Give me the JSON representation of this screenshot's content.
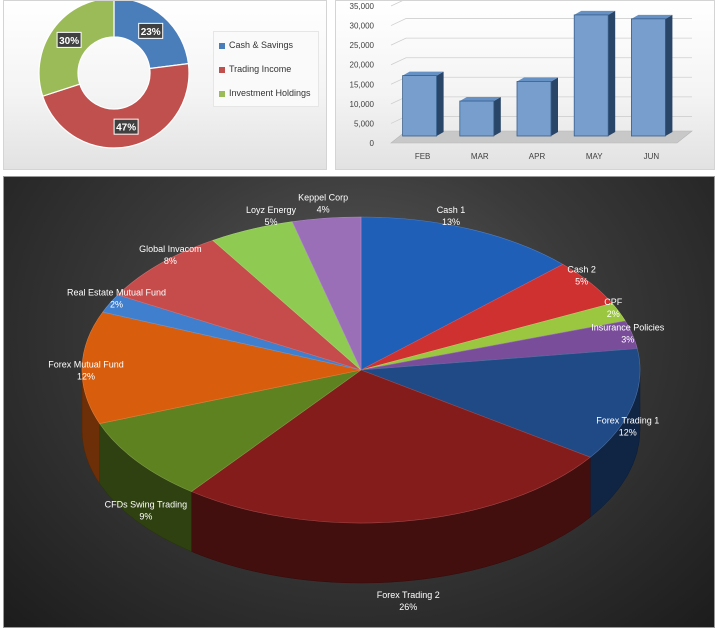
{
  "chart_data": [
    {
      "type": "pie",
      "variant": "donut",
      "categories": [
        "Cash & Savings",
        "Trading Income",
        "Investment Holdings"
      ],
      "values": [
        23,
        47,
        30
      ],
      "labels": [
        "23%",
        "47%",
        "30%"
      ],
      "colors": [
        "#4a7ebb",
        "#c0504d",
        "#9bbb59"
      ],
      "legend": "right"
    },
    {
      "type": "bar",
      "style": "3d-columns",
      "categories": [
        "FEB",
        "MAR",
        "APR",
        "MAY",
        "JUN"
      ],
      "values": [
        18500,
        12000,
        17000,
        34000,
        33000
      ],
      "ylim": [
        0,
        35000
      ],
      "yticks": [
        "0",
        "5,000",
        "10,000",
        "15,000",
        "20,000",
        "25,000",
        "30,000",
        "35,000"
      ],
      "color": "#4a7ebb",
      "grid": true
    },
    {
      "type": "pie",
      "style": "3d",
      "categories": [
        "Cash 1",
        "Cash 2",
        "CPF",
        "Insurance Policies",
        "Forex Trading 1",
        "Forex Trading 2",
        "CFDs Swing Trading",
        "Forex Mutual Fund",
        "Real Estate Mutual Fund",
        "Global Invacom",
        "Loyz Energy",
        "Keppel Corp"
      ],
      "values": [
        13,
        5,
        2,
        3,
        12,
        26,
        9,
        12,
        2,
        8,
        5,
        4
      ],
      "labels": [
        "13%",
        "5%",
        "2%",
        "3%",
        "12%",
        "26%",
        "9%",
        "12%",
        "2%",
        "8%",
        "5%",
        "4%"
      ],
      "colors": [
        "#1f5fb8",
        "#cf3030",
        "#9bc640",
        "#7a4d9a",
        "#1f4a86",
        "#851c1c",
        "#5e8220",
        "#d85e0e",
        "#3f7fce",
        "#c64c4c",
        "#8fcb52",
        "#9a6fb8"
      ],
      "background": "#3a3a3a"
    }
  ]
}
